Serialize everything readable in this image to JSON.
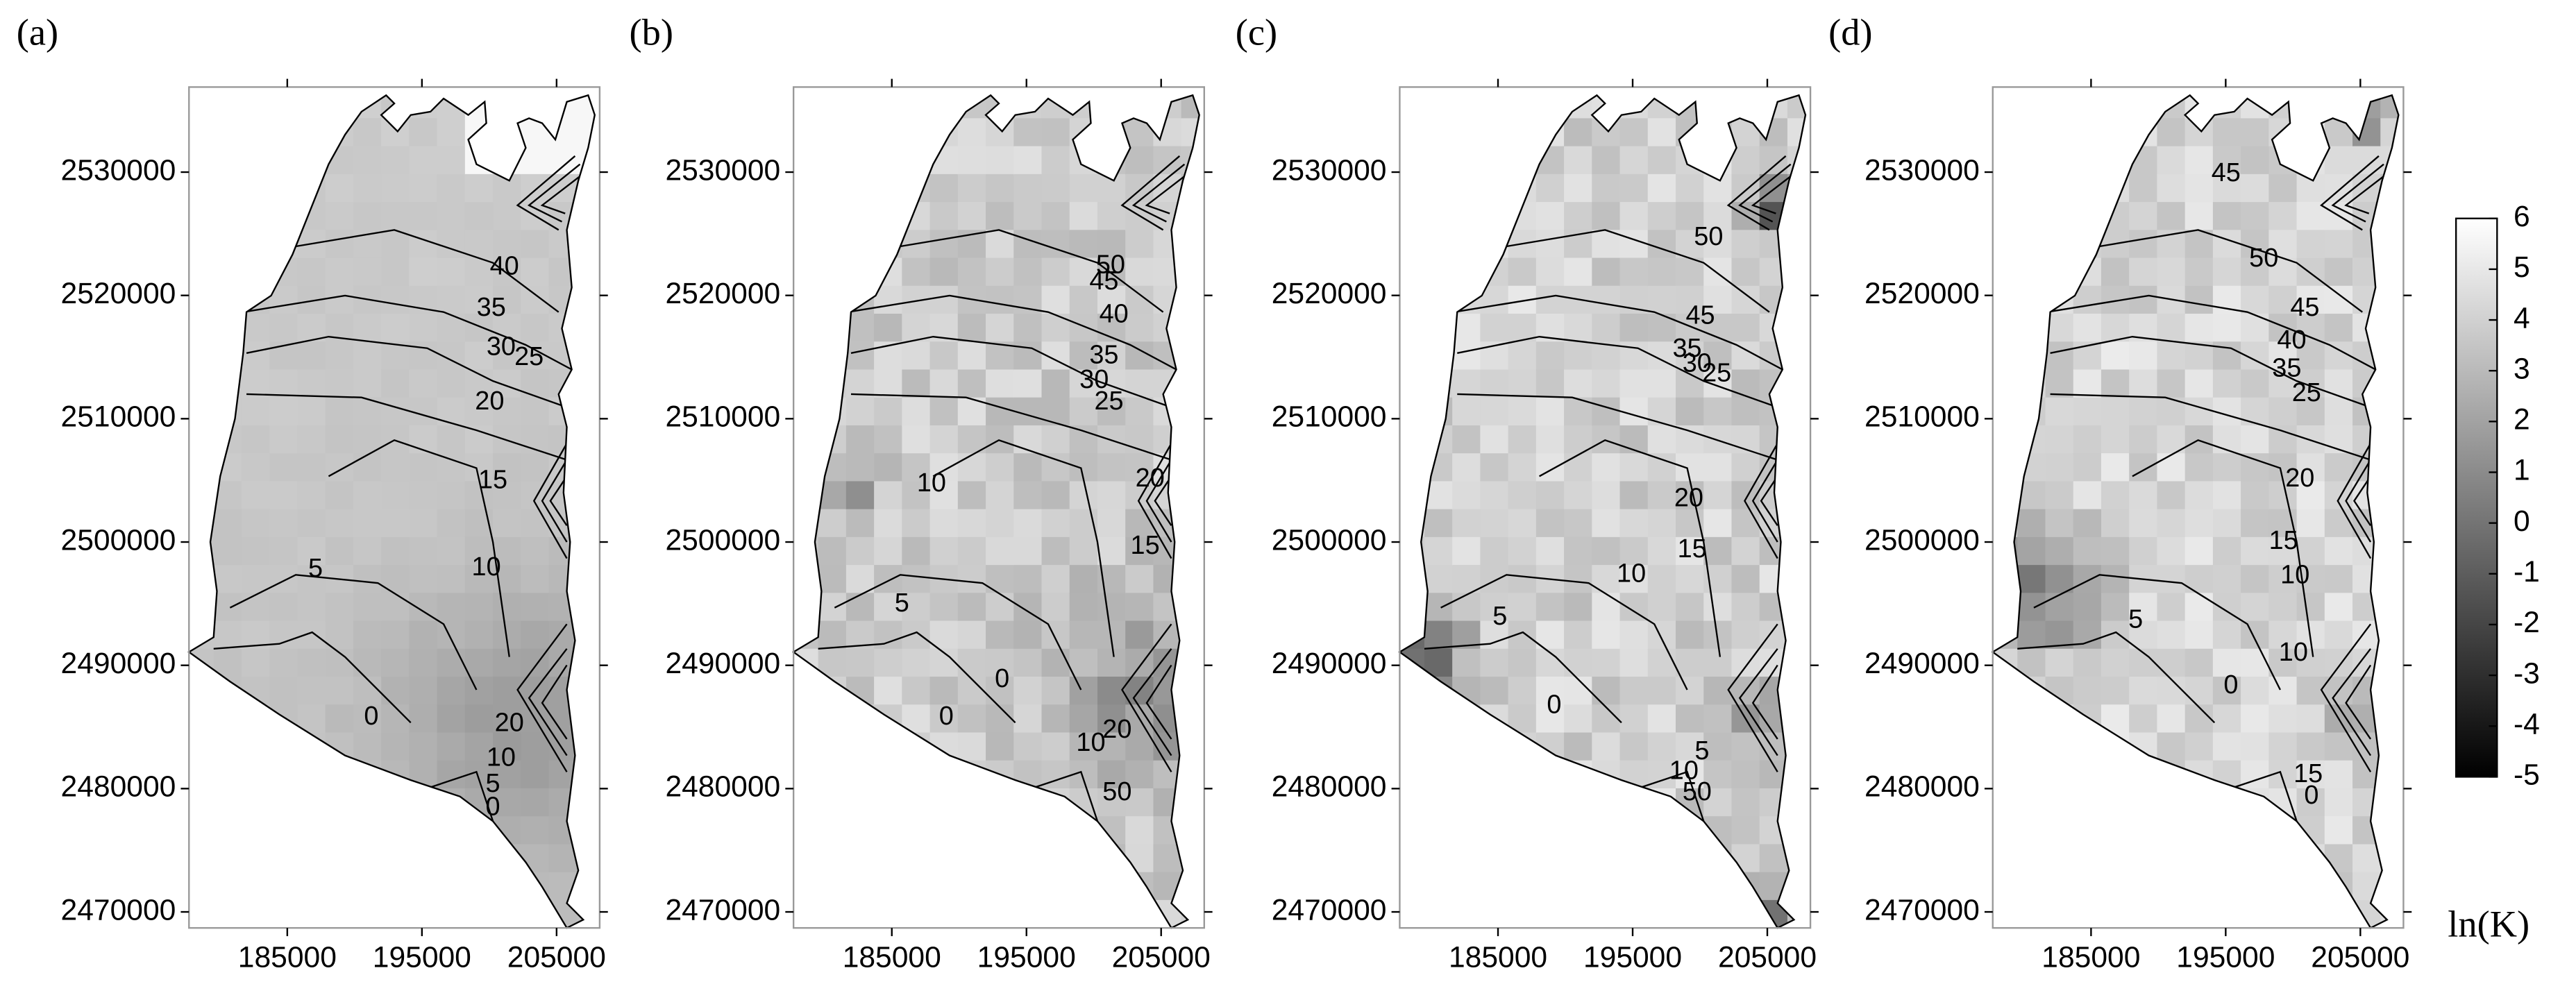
{
  "chart_data": [
    {
      "type": "heatmap",
      "panel_label": "(a)",
      "xlim": [
        177700,
        208200
      ],
      "ylim": [
        2468700,
        2536900
      ],
      "xticks": [
        185000,
        195000,
        205000
      ],
      "yticks": [
        2470000,
        2480000,
        2490000,
        2500000,
        2510000,
        2520000,
        2530000
      ],
      "contour_labels": [
        40,
        35,
        30,
        25,
        20,
        15,
        10,
        5,
        0,
        20,
        10,
        5,
        0
      ]
    },
    {
      "type": "heatmap",
      "panel_label": "(b)",
      "xlim": [
        177700,
        208200
      ],
      "ylim": [
        2468700,
        2536900
      ],
      "xticks": [
        185000,
        195000,
        205000
      ],
      "yticks": [
        2470000,
        2480000,
        2490000,
        2500000,
        2510000,
        2520000,
        2530000
      ],
      "contour_labels": [
        50,
        45,
        40,
        35,
        30,
        25,
        20,
        15,
        10,
        5,
        0,
        0,
        10,
        20,
        50
      ]
    },
    {
      "type": "heatmap",
      "panel_label": "(c)",
      "xlim": [
        177700,
        208200
      ],
      "ylim": [
        2468700,
        2536900
      ],
      "xticks": [
        185000,
        195000,
        205000
      ],
      "yticks": [
        2470000,
        2480000,
        2490000,
        2500000,
        2510000,
        2520000,
        2530000
      ],
      "contour_labels": [
        50,
        45,
        35,
        30,
        25,
        20,
        15,
        10,
        5,
        0,
        10,
        5,
        50
      ]
    },
    {
      "type": "heatmap",
      "panel_label": "(d)",
      "xlim": [
        177700,
        208200
      ],
      "ylim": [
        2468700,
        2536900
      ],
      "xticks": [
        185000,
        195000,
        205000
      ],
      "yticks": [
        2470000,
        2480000,
        2490000,
        2500000,
        2510000,
        2520000,
        2530000
      ],
      "contour_labels": [
        45,
        50,
        45,
        40,
        35,
        25,
        20,
        15,
        10,
        10,
        5,
        0,
        15,
        0
      ]
    }
  ],
  "colorbar": {
    "label": "ln(K)",
    "lim": [
      -5,
      6
    ],
    "ticks": [
      6,
      5,
      4,
      3,
      2,
      1,
      0,
      -1,
      -2,
      -3,
      -4,
      -5
    ]
  }
}
